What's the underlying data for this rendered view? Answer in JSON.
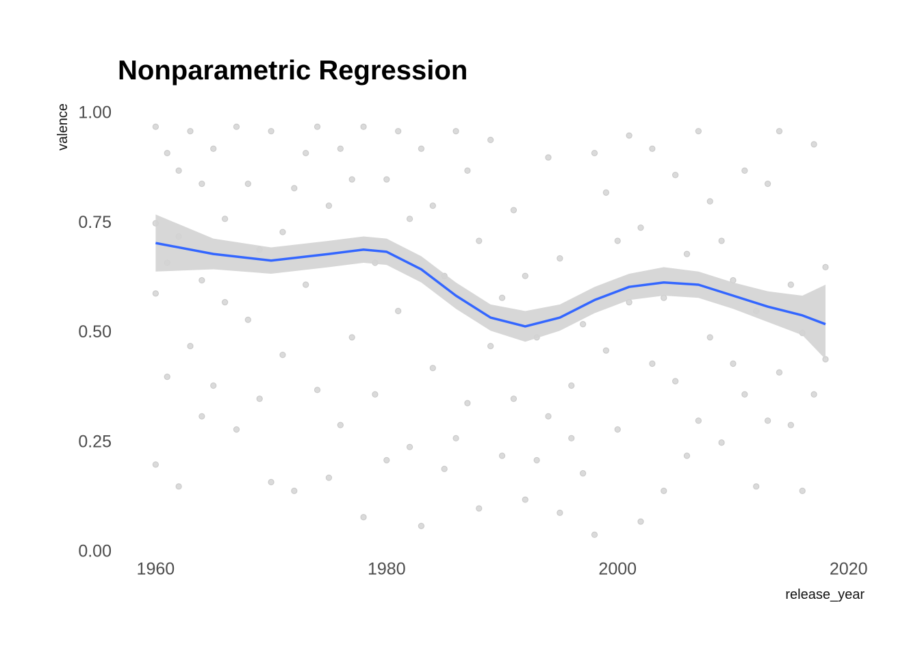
{
  "chart_data": {
    "type": "scatter",
    "title": "Nonparametric Regression",
    "x_label": "release_year",
    "y_label": "valence",
    "xlim": [
      1956.6,
      2021.5
    ],
    "ylim": [
      0,
      1
    ],
    "xticks": [
      1960,
      1980,
      2000,
      2020
    ],
    "yticks": [
      {
        "value": 0,
        "label": "0.00"
      },
      0.25,
      {
        "value": 0.5,
        "label": "0.50"
      },
      0.75,
      {
        "value": 1,
        "label": "1.00"
      }
    ],
    "grid": false,
    "points": {
      "color": "#333333",
      "opacity": 0.18,
      "x": [
        1960,
        1960,
        1960,
        1960,
        1961,
        1961,
        1961,
        1962,
        1962,
        1962,
        1963,
        1963,
        1964,
        1964,
        1964,
        1965,
        1965,
        1966,
        1966,
        1967,
        1967,
        1968,
        1968,
        1969,
        1969,
        1970,
        1970,
        1971,
        1971,
        1972,
        1972,
        1973,
        1973,
        1974,
        1974,
        1975,
        1975,
        1976,
        1976,
        1977,
        1977,
        1978,
        1978,
        1979,
        1979,
        1980,
        1980,
        1981,
        1981,
        1982,
        1982,
        1983,
        1983,
        1984,
        1984,
        1985,
        1985,
        1986,
        1986,
        1987,
        1987,
        1988,
        1988,
        1989,
        1989,
        1990,
        1990,
        1991,
        1991,
        1992,
        1992,
        1993,
        1993,
        1994,
        1994,
        1995,
        1995,
        1996,
        1996,
        1997,
        1997,
        1998,
        1998,
        1999,
        1999,
        2000,
        2000,
        2001,
        2001,
        2002,
        2002,
        2003,
        2003,
        2004,
        2004,
        2005,
        2005,
        2006,
        2006,
        2007,
        2007,
        2008,
        2008,
        2009,
        2009,
        2010,
        2010,
        2011,
        2011,
        2012,
        2012,
        2013,
        2013,
        2014,
        2014,
        2015,
        2015,
        2016,
        2016,
        2017,
        2017,
        2018,
        2018
      ],
      "y": [
        0.97,
        0.75,
        0.2,
        0.59,
        0.91,
        0.4,
        0.66,
        0.87,
        0.15,
        0.72,
        0.96,
        0.47,
        0.84,
        0.31,
        0.62,
        0.92,
        0.38,
        0.57,
        0.76,
        0.97,
        0.28,
        0.84,
        0.53,
        0.35,
        0.69,
        0.96,
        0.16,
        0.73,
        0.45,
        0.83,
        0.14,
        0.61,
        0.91,
        0.37,
        0.97,
        0.79,
        0.17,
        0.92,
        0.29,
        0.49,
        0.85,
        0.97,
        0.08,
        0.36,
        0.66,
        0.85,
        0.21,
        0.55,
        0.96,
        0.24,
        0.76,
        0.92,
        0.06,
        0.42,
        0.79,
        0.63,
        0.19,
        0.96,
        0.26,
        0.34,
        0.87,
        0.71,
        0.1,
        0.47,
        0.94,
        0.22,
        0.58,
        0.78,
        0.35,
        0.12,
        0.63,
        0.49,
        0.21,
        0.9,
        0.31,
        0.67,
        0.09,
        0.38,
        0.26,
        0.52,
        0.18,
        0.91,
        0.04,
        0.46,
        0.82,
        0.28,
        0.71,
        0.95,
        0.57,
        0.74,
        0.07,
        0.43,
        0.92,
        0.58,
        0.14,
        0.39,
        0.86,
        0.68,
        0.22,
        0.96,
        0.3,
        0.49,
        0.8,
        0.25,
        0.71,
        0.43,
        0.62,
        0.87,
        0.36,
        0.55,
        0.15,
        0.84,
        0.3,
        0.96,
        0.41,
        0.61,
        0.29,
        0.5,
        0.14,
        0.93,
        0.36,
        0.65,
        0.44
      ]
    },
    "smooth": {
      "color": "#3366ff",
      "band_color": "#d3d3d3",
      "x": [
        1960,
        1965,
        1970,
        1975,
        1978,
        1980,
        1983,
        1986,
        1989,
        1992,
        1995,
        1998,
        2001,
        2004,
        2007,
        2010,
        2013,
        2016,
        2018
      ],
      "y": [
        0.705,
        0.68,
        0.665,
        0.68,
        0.69,
        0.685,
        0.645,
        0.585,
        0.535,
        0.515,
        0.535,
        0.575,
        0.605,
        0.615,
        0.61,
        0.585,
        0.56,
        0.54,
        0.52
      ],
      "lower": [
        0.64,
        0.645,
        0.635,
        0.65,
        0.66,
        0.655,
        0.615,
        0.555,
        0.505,
        0.48,
        0.505,
        0.545,
        0.575,
        0.585,
        0.58,
        0.555,
        0.525,
        0.495,
        0.44
      ],
      "upper": [
        0.77,
        0.715,
        0.695,
        0.71,
        0.72,
        0.715,
        0.675,
        0.615,
        0.565,
        0.55,
        0.565,
        0.605,
        0.635,
        0.65,
        0.64,
        0.615,
        0.595,
        0.585,
        0.61
      ]
    }
  }
}
